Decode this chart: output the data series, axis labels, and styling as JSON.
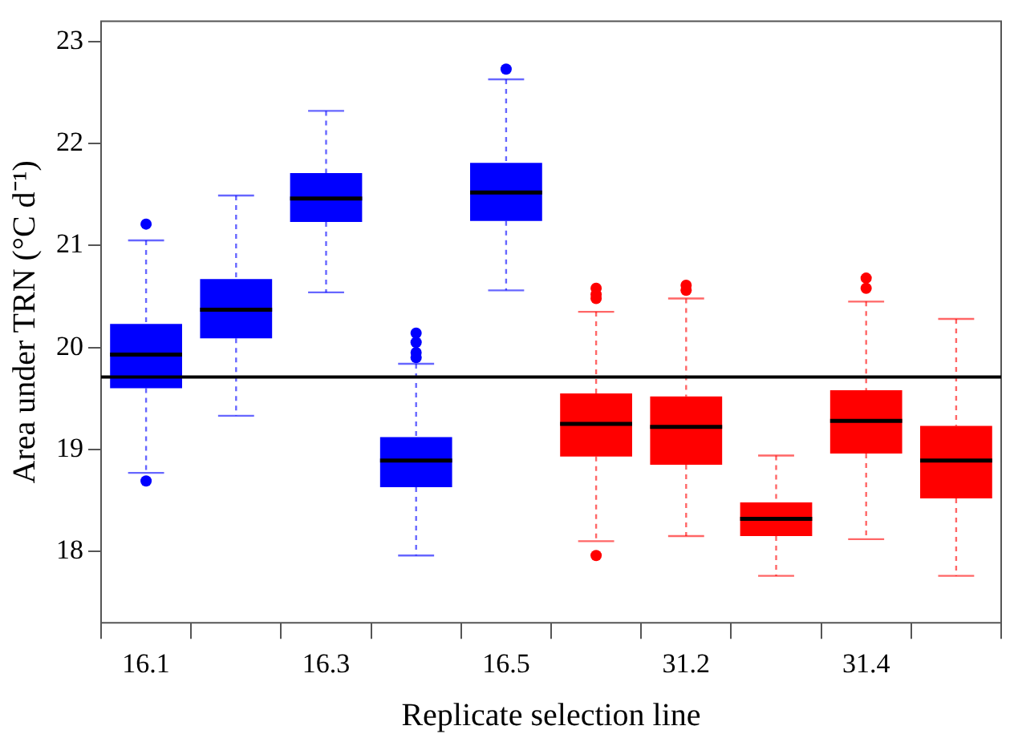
{
  "chart_data": {
    "type": "box",
    "xlabel": "Replicate selection line",
    "ylabel": "Area under TRN (°C d⁻¹)",
    "categories": [
      "16.1",
      null,
      "16.3",
      null,
      "16.5",
      null,
      "31.2",
      null,
      "31.4",
      null
    ],
    "colors": [
      "#0000ff",
      "#0000ff",
      "#0000ff",
      "#0000ff",
      "#0000ff",
      "#ff0000",
      "#ff0000",
      "#ff0000",
      "#ff0000",
      "#ff0000"
    ],
    "boxes": [
      {
        "low": 18.77,
        "q1": 19.6,
        "median": 19.93,
        "q3": 20.23,
        "high": 21.05,
        "outliers": [
          21.21,
          18.69
        ]
      },
      {
        "low": 19.33,
        "q1": 20.09,
        "median": 20.37,
        "q3": 20.67,
        "high": 21.49
      },
      {
        "low": 20.54,
        "q1": 21.23,
        "median": 21.46,
        "q3": 21.71,
        "high": 22.32
      },
      {
        "low": 17.96,
        "q1": 18.63,
        "median": 18.89,
        "q3": 19.12,
        "high": 19.84,
        "outliers": [
          20.14,
          20.05,
          19.95,
          19.9
        ]
      },
      {
        "low": 20.56,
        "q1": 21.24,
        "median": 21.52,
        "q3": 21.81,
        "high": 22.63,
        "outliers": [
          22.73
        ]
      },
      {
        "low": 18.1,
        "q1": 18.93,
        "median": 19.25,
        "q3": 19.55,
        "high": 20.35,
        "outliers": [
          20.58,
          20.52,
          20.48,
          17.96
        ]
      },
      {
        "low": 18.15,
        "q1": 18.85,
        "median": 19.22,
        "q3": 19.52,
        "high": 20.48,
        "outliers": [
          20.61,
          20.56
        ]
      },
      {
        "low": 17.76,
        "q1": 18.15,
        "median": 18.32,
        "q3": 18.48,
        "high": 18.94
      },
      {
        "low": 18.12,
        "q1": 18.96,
        "median": 19.28,
        "q3": 19.58,
        "high": 20.45,
        "outliers": [
          20.68,
          20.58
        ]
      },
      {
        "low": 17.76,
        "q1": 18.52,
        "median": 18.89,
        "q3": 19.23,
        "high": 20.28
      }
    ],
    "ylim": [
      17.3,
      23.2
    ],
    "yticks": [
      18,
      19,
      20,
      21,
      22,
      23
    ],
    "ref_lines": [
      {
        "axis": "y",
        "value": 19.71,
        "color": "#000000"
      }
    ],
    "grid": false,
    "legend": false
  }
}
